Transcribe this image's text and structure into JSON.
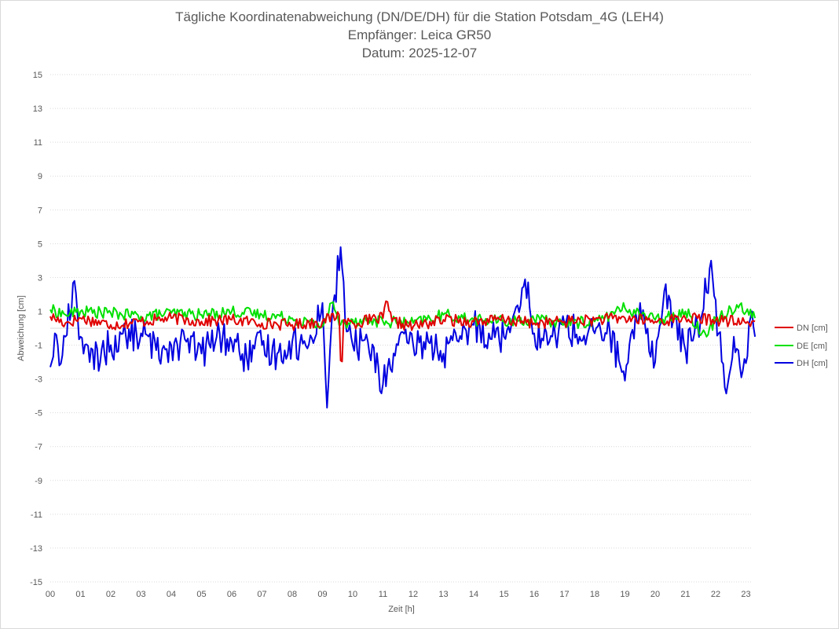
{
  "chart_data": {
    "type": "line",
    "title": "Tägliche Koordinatenabweichung (DN/DE/DH) für die Station Potsdam_4G (LEH4)",
    "subtitle1": "Empfänger: Leica GR50",
    "subtitle2": "Datum: 2025-12-07",
    "xlabel": "Zeit [h]",
    "ylabel": "Abweichung [cm]",
    "ylim": [
      -15,
      15
    ],
    "xlim": [
      0,
      23.3
    ],
    "yticks": [
      "15",
      "13",
      "11",
      "9",
      "7",
      "5",
      "3",
      "1",
      "-1",
      "-3",
      "-5",
      "-7",
      "-9",
      "-11",
      "-13",
      "-15"
    ],
    "xticks": [
      "00",
      "01",
      "02",
      "03",
      "04",
      "05",
      "06",
      "07",
      "08",
      "09",
      "10",
      "11",
      "12",
      "13",
      "14",
      "15",
      "16",
      "17",
      "18",
      "19",
      "20",
      "21",
      "22",
      "23"
    ],
    "grid": "horizontal dotted",
    "legend_position": "right",
    "series": [
      {
        "name": "DN [cm]",
        "color": "#e00000",
        "keypoints": [
          [
            0,
            0.7
          ],
          [
            0.5,
            0.3
          ],
          [
            1,
            0.6
          ],
          [
            2,
            0.2
          ],
          [
            3,
            0.4
          ],
          [
            4,
            0.6
          ],
          [
            5,
            0.4
          ],
          [
            6,
            0.5
          ],
          [
            7,
            0.3
          ],
          [
            8,
            0.2
          ],
          [
            9,
            0.4
          ],
          [
            9.55,
            0.8
          ],
          [
            9.62,
            -3.0
          ],
          [
            9.7,
            0.5
          ],
          [
            10,
            0.3
          ],
          [
            11,
            0.6
          ],
          [
            11.1,
            1.6
          ],
          [
            11.3,
            0.4
          ],
          [
            12,
            0.1
          ],
          [
            13,
            0.5
          ],
          [
            14,
            0.4
          ],
          [
            15,
            0.5
          ],
          [
            16,
            0.3
          ],
          [
            17,
            0.4
          ],
          [
            18,
            0.5
          ],
          [
            19,
            0.6
          ],
          [
            20,
            0.4
          ],
          [
            21,
            0.6
          ],
          [
            22,
            0.5
          ],
          [
            23,
            0.3
          ],
          [
            23.3,
            0.4
          ]
        ]
      },
      {
        "name": "DE [cm]",
        "color": "#00e000",
        "keypoints": [
          [
            0,
            1.1
          ],
          [
            0.5,
            0.8
          ],
          [
            1,
            1.0
          ],
          [
            2,
            0.9
          ],
          [
            3,
            0.7
          ],
          [
            4,
            0.9
          ],
          [
            5,
            0.8
          ],
          [
            6,
            1.0
          ],
          [
            7,
            0.8
          ],
          [
            8,
            0.6
          ],
          [
            9,
            0.1
          ],
          [
            9.3,
            1.5
          ],
          [
            9.6,
            0.2
          ],
          [
            10,
            0.5
          ],
          [
            11,
            0.4
          ],
          [
            12,
            0.3
          ],
          [
            13,
            0.8
          ],
          [
            14,
            0.5
          ],
          [
            15,
            0.4
          ],
          [
            16,
            0.5
          ],
          [
            17,
            0.3
          ],
          [
            18,
            0.4
          ],
          [
            19,
            1.2
          ],
          [
            20,
            0.5
          ],
          [
            21,
            1.0
          ],
          [
            21.7,
            -0.5
          ],
          [
            22,
            0.6
          ],
          [
            22.8,
            1.4
          ],
          [
            23.3,
            0.6
          ]
        ]
      },
      {
        "name": "DH [cm]",
        "color": "#0000e0",
        "keypoints": [
          [
            0,
            -2.3
          ],
          [
            0.15,
            -0.3
          ],
          [
            0.3,
            -2.2
          ],
          [
            0.5,
            -0.5
          ],
          [
            0.8,
            2.8
          ],
          [
            1,
            -0.5
          ],
          [
            1.3,
            -2.0
          ],
          [
            2,
            -1.0
          ],
          [
            2.5,
            -0.5
          ],
          [
            3,
            -0.3
          ],
          [
            3.5,
            -1.3
          ],
          [
            4,
            -1.0
          ],
          [
            4.5,
            -0.8
          ],
          [
            5,
            -1.5
          ],
          [
            5.5,
            -0.5
          ],
          [
            6,
            -0.8
          ],
          [
            6.5,
            -1.8
          ],
          [
            7,
            -1.0
          ],
          [
            7.5,
            -1.5
          ],
          [
            8,
            -0.8
          ],
          [
            8.5,
            -1.2
          ],
          [
            9,
            1.5
          ],
          [
            9.15,
            -4.7
          ],
          [
            9.3,
            0.3
          ],
          [
            9.6,
            4.8
          ],
          [
            9.8,
            -0.2
          ],
          [
            10,
            -1.0
          ],
          [
            10.5,
            -0.8
          ],
          [
            11,
            -3.3
          ],
          [
            11.5,
            -1.0
          ],
          [
            12,
            -1.0
          ],
          [
            12.5,
            -0.8
          ],
          [
            13,
            -1.5
          ],
          [
            13.5,
            -0.8
          ],
          [
            14,
            0.2
          ],
          [
            14.5,
            -0.3
          ],
          [
            15,
            -0.5
          ],
          [
            15.7,
            2.9
          ],
          [
            16,
            -0.3
          ],
          [
            16.5,
            -0.8
          ],
          [
            17,
            0.3
          ],
          [
            17.5,
            -0.5
          ],
          [
            18,
            -0.3
          ],
          [
            18.5,
            -0.2
          ],
          [
            19,
            -3.1
          ],
          [
            19.5,
            1.5
          ],
          [
            20,
            -2.0
          ],
          [
            20.3,
            2.2
          ],
          [
            20.6,
            0.5
          ],
          [
            21,
            -1.3
          ],
          [
            21.5,
            0.5
          ],
          [
            21.85,
            4.0
          ],
          [
            22.1,
            -0.3
          ],
          [
            22.3,
            -3.5
          ],
          [
            22.6,
            -0.5
          ],
          [
            22.9,
            -2.5
          ],
          [
            23.2,
            1.0
          ],
          [
            23.3,
            -0.5
          ]
        ]
      }
    ]
  }
}
